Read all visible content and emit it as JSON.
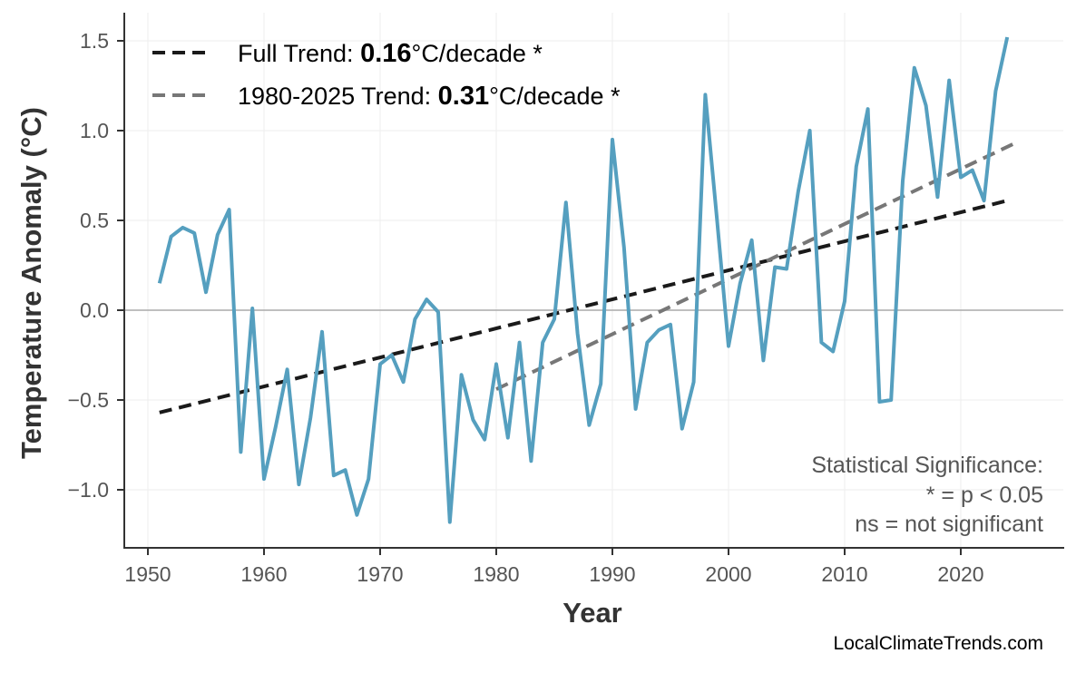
{
  "chart_data": {
    "type": "line",
    "xlabel": "Year",
    "ylabel": "Temperature Anomaly (°C)",
    "xlim": [
      1947.5,
      2028.5
    ],
    "ylim": [
      -1.32,
      1.65
    ],
    "x_ticks": [
      1950,
      1960,
      1970,
      1980,
      1990,
      2000,
      2010,
      2020
    ],
    "y_ticks": [
      -1.0,
      -0.5,
      0.0,
      0.5,
      1.0,
      1.5
    ],
    "y_tick_labels": [
      "−1.0",
      "−0.5",
      "0.0",
      "0.5",
      "1.0",
      "1.5"
    ],
    "grid": true,
    "legend_placement": "top-left",
    "series": [
      {
        "color": "#559fbf",
        "x": [
          1951,
          1952,
          1953,
          1954,
          1955,
          1956,
          1957,
          1958,
          1959,
          1960,
          1961,
          1962,
          1963,
          1964,
          1965,
          1966,
          1967,
          1968,
          1969,
          1970,
          1971,
          1972,
          1973,
          1974,
          1975,
          1976,
          1977,
          1978,
          1979,
          1980,
          1981,
          1982,
          1983,
          1984,
          1985,
          1986,
          1987,
          1988,
          1989,
          1990,
          1991,
          1992,
          1993,
          1994,
          1995,
          1996,
          1997,
          1998,
          1999,
          2000,
          2001,
          2002,
          2003,
          2004,
          2005,
          2006,
          2007,
          2008,
          2009,
          2010,
          2011,
          2012,
          2013,
          2014,
          2015,
          2016,
          2017,
          2018,
          2019,
          2020,
          2021,
          2022,
          2023,
          2024
        ],
        "y": [
          0.15,
          0.41,
          0.46,
          0.43,
          0.1,
          0.42,
          0.56,
          -0.79,
          0.01,
          -0.94,
          -0.65,
          -0.33,
          -0.97,
          -0.6,
          -0.12,
          -0.92,
          -0.89,
          -1.14,
          -0.94,
          -0.3,
          -0.25,
          -0.4,
          -0.05,
          0.06,
          -0.01,
          -1.18,
          -0.36,
          -0.61,
          -0.72,
          -0.3,
          -0.71,
          -0.18,
          -0.84,
          -0.18,
          -0.05,
          0.6,
          -0.13,
          -0.64,
          -0.41,
          0.95,
          0.35,
          -0.55,
          -0.18,
          -0.11,
          -0.08,
          -0.66,
          -0.4,
          1.2,
          0.51,
          -0.2,
          0.15,
          0.39,
          -0.28,
          0.24,
          0.23,
          0.66,
          1.0,
          -0.18,
          -0.23,
          0.05,
          0.8,
          1.12,
          -0.51,
          -0.5,
          0.72,
          1.35,
          1.14,
          0.63,
          1.28,
          0.74,
          0.78,
          0.61,
          1.22,
          1.52
        ]
      }
    ],
    "trends": [
      {
        "label_prefix": "Full Trend: ",
        "rate": "0.16",
        "label_suffix": "°C/decade *",
        "color": "#1a1a1a",
        "x": [
          1951,
          2024
        ],
        "y": [
          -0.57,
          0.61
        ]
      },
      {
        "label_prefix": "1980-2025 Trend: ",
        "rate": "0.31",
        "label_suffix": "°C/decade *",
        "color": "#777777",
        "x": [
          1980,
          2025
        ],
        "y": [
          -0.44,
          0.94
        ]
      }
    ],
    "annotation": [
      "Statistical Significance:",
      "* = p < 0.05",
      "ns = not significant"
    ],
    "watermark": "LocalClimateTrends.com"
  }
}
